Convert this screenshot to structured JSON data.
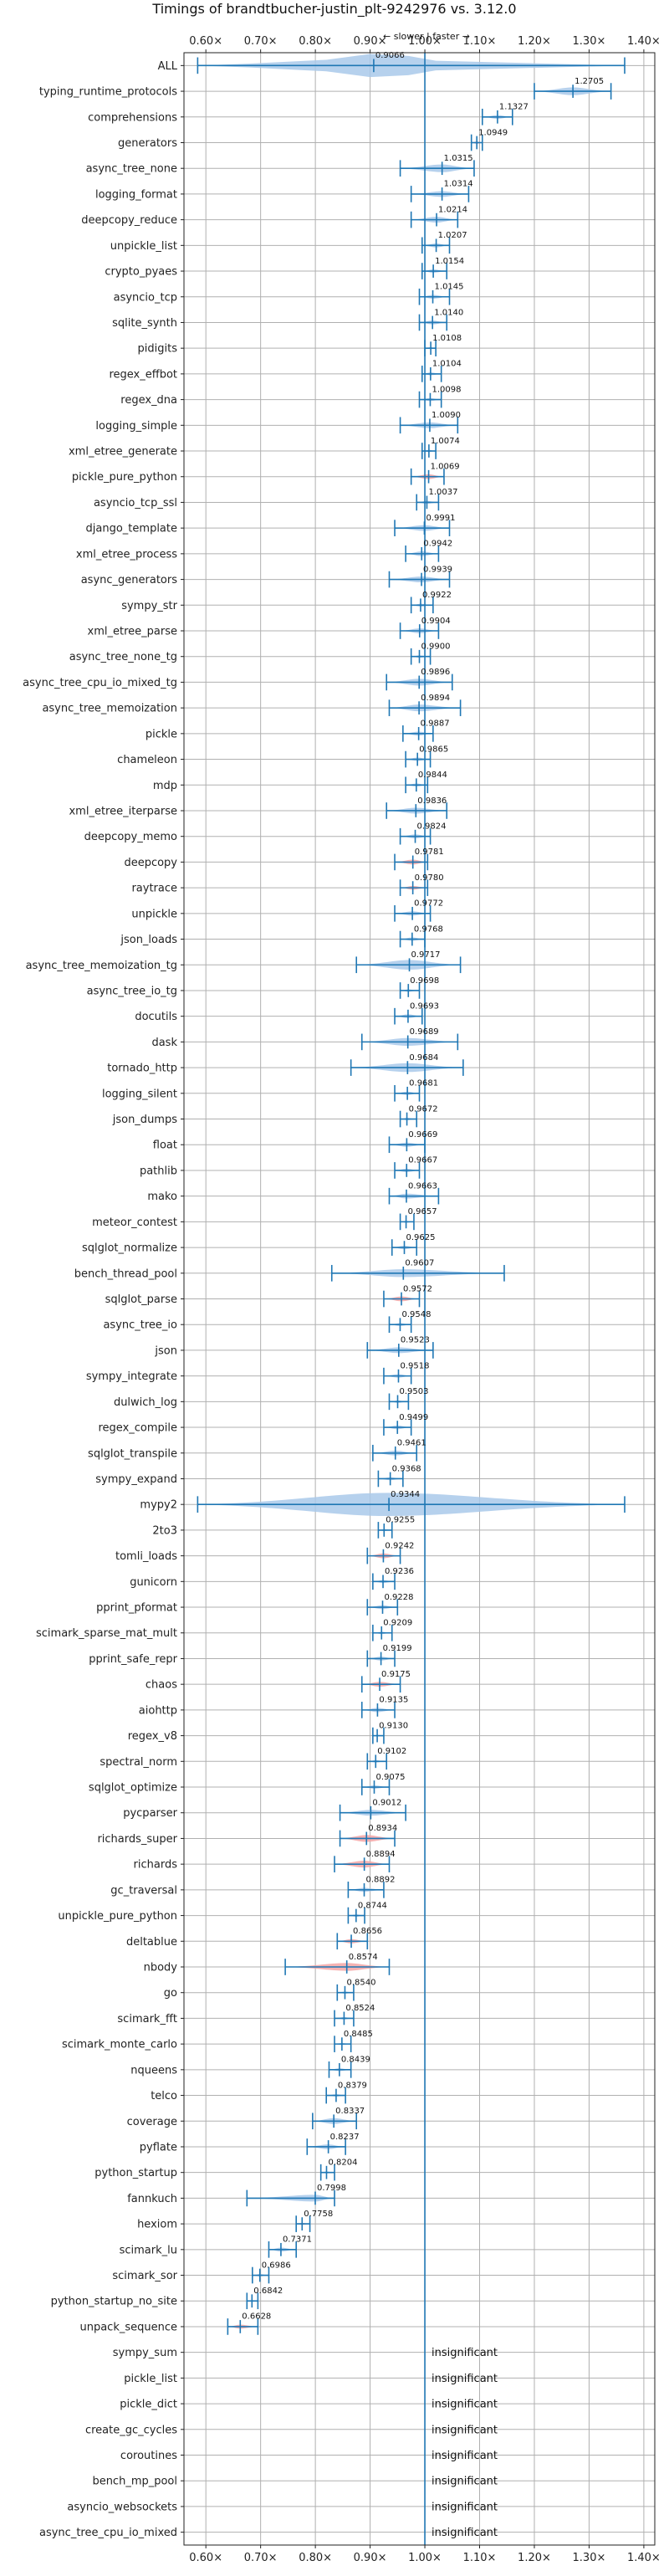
{
  "chart_data": {
    "type": "violin",
    "title": "Timings of brandtbucher-justin_plt-9242976 vs. 3.12.0",
    "subtitle": "← slower | faster →",
    "xlim": [
      0.56,
      1.42
    ],
    "xticks": [
      0.6,
      0.7,
      0.8,
      0.9,
      1.0,
      1.1,
      1.2,
      1.3,
      1.4
    ],
    "xtick_labels": [
      "0.60×",
      "0.70×",
      "0.80×",
      "0.90×",
      "1.00×",
      "1.10×",
      "1.20×",
      "1.30×",
      "1.40×"
    ],
    "grid": true,
    "reference_line": 1.0,
    "colors": {
      "normal": "#a9c9ea",
      "slower": "#f4a6a6",
      "errorbar": "#1f77b4"
    },
    "insignificant_label": "insignificant",
    "benchmarks": [
      {
        "name": "ALL",
        "label": "0.9066",
        "mean": 0.9066,
        "min": 0.585,
        "max": 1.365,
        "width": 0.05,
        "color": "normal",
        "violin": [
          [
            0.68,
            0.02
          ],
          [
            0.82,
            0.06
          ],
          [
            0.9,
            0.12
          ],
          [
            0.97,
            0.1
          ],
          [
            1.02,
            0.05
          ]
        ]
      },
      {
        "name": "typing_runtime_protocols",
        "label": "1.2705",
        "mean": 1.2705,
        "min": 1.2,
        "max": 1.34,
        "width": 0.04,
        "color": "normal"
      },
      {
        "name": "comprehensions",
        "label": "1.1327",
        "mean": 1.1327,
        "min": 1.105,
        "max": 1.16,
        "width": 0.02,
        "color": "normal"
      },
      {
        "name": "generators",
        "label": "1.0949",
        "mean": 1.0949,
        "min": 1.085,
        "max": 1.105,
        "width": 0.012,
        "color": "slower"
      },
      {
        "name": "async_tree_none",
        "label": "1.0315",
        "mean": 1.0315,
        "min": 0.955,
        "max": 1.09,
        "width": 0.04,
        "color": "normal"
      },
      {
        "name": "logging_format",
        "label": "1.0314",
        "mean": 1.0314,
        "min": 0.975,
        "max": 1.08,
        "width": 0.03,
        "color": "normal"
      },
      {
        "name": "deepcopy_reduce",
        "label": "1.0214",
        "mean": 1.0214,
        "min": 0.975,
        "max": 1.06,
        "width": 0.03,
        "color": "normal"
      },
      {
        "name": "unpickle_list",
        "label": "1.0207",
        "mean": 1.0207,
        "min": 0.995,
        "max": 1.045,
        "width": 0.02,
        "color": "normal"
      },
      {
        "name": "crypto_pyaes",
        "label": "1.0154",
        "mean": 1.0154,
        "min": 0.995,
        "max": 1.04,
        "width": 0.018,
        "color": "normal"
      },
      {
        "name": "asyncio_tcp",
        "label": "1.0145",
        "mean": 1.0145,
        "min": 0.99,
        "max": 1.045,
        "width": 0.02,
        "color": "normal"
      },
      {
        "name": "sqlite_synth",
        "label": "1.0140",
        "mean": 1.014,
        "min": 0.99,
        "max": 1.04,
        "width": 0.02,
        "color": "normal"
      },
      {
        "name": "pidigits",
        "label": "1.0108",
        "mean": 1.0108,
        "min": 1.0,
        "max": 1.02,
        "width": 0.01,
        "color": "normal"
      },
      {
        "name": "regex_effbot",
        "label": "1.0104",
        "mean": 1.0104,
        "min": 0.995,
        "max": 1.03,
        "width": 0.015,
        "color": "normal"
      },
      {
        "name": "regex_dna",
        "label": "1.0098",
        "mean": 1.0098,
        "min": 0.99,
        "max": 1.03,
        "width": 0.015,
        "color": "normal"
      },
      {
        "name": "logging_simple",
        "label": "1.0090",
        "mean": 1.009,
        "min": 0.955,
        "max": 1.06,
        "width": 0.03,
        "color": "normal"
      },
      {
        "name": "xml_etree_generate",
        "label": "1.0074",
        "mean": 1.0074,
        "min": 0.995,
        "max": 1.02,
        "width": 0.012,
        "color": "normal"
      },
      {
        "name": "pickle_pure_python",
        "label": "1.0069",
        "mean": 1.0069,
        "min": 0.975,
        "max": 1.035,
        "width": 0.025,
        "color": "slower"
      },
      {
        "name": "asyncio_tcp_ssl",
        "label": "1.0037",
        "mean": 1.0037,
        "min": 0.985,
        "max": 1.025,
        "width": 0.015,
        "color": "normal"
      },
      {
        "name": "django_template",
        "label": "0.9991",
        "mean": 0.9991,
        "min": 0.945,
        "max": 1.045,
        "width": 0.03,
        "color": "normal"
      },
      {
        "name": "xml_etree_process",
        "label": "0.9942",
        "mean": 0.9942,
        "min": 0.965,
        "max": 1.025,
        "width": 0.025,
        "color": "normal"
      },
      {
        "name": "async_generators",
        "label": "0.9939",
        "mean": 0.9939,
        "min": 0.935,
        "max": 1.045,
        "width": 0.03,
        "color": "normal"
      },
      {
        "name": "sympy_str",
        "label": "0.9922",
        "mean": 0.9922,
        "min": 0.975,
        "max": 1.015,
        "width": 0.015,
        "color": "normal"
      },
      {
        "name": "xml_etree_parse",
        "label": "0.9904",
        "mean": 0.9904,
        "min": 0.955,
        "max": 1.025,
        "width": 0.025,
        "color": "normal"
      },
      {
        "name": "async_tree_none_tg",
        "label": "0.9900",
        "mean": 0.99,
        "min": 0.975,
        "max": 1.01,
        "width": 0.012,
        "color": "normal"
      },
      {
        "name": "async_tree_cpu_io_mixed_tg",
        "label": "0.9896",
        "mean": 0.9896,
        "min": 0.93,
        "max": 1.05,
        "width": 0.035,
        "color": "normal"
      },
      {
        "name": "async_tree_memoization",
        "label": "0.9894",
        "mean": 0.9894,
        "min": 0.935,
        "max": 1.065,
        "width": 0.035,
        "color": "normal"
      },
      {
        "name": "pickle",
        "label": "0.9887",
        "mean": 0.9887,
        "min": 0.96,
        "max": 1.015,
        "width": 0.02,
        "color": "normal"
      },
      {
        "name": "chameleon",
        "label": "0.9865",
        "mean": 0.9865,
        "min": 0.965,
        "max": 1.01,
        "width": 0.018,
        "color": "normal"
      },
      {
        "name": "mdp",
        "label": "0.9844",
        "mean": 0.9844,
        "min": 0.965,
        "max": 1.005,
        "width": 0.015,
        "color": "normal"
      },
      {
        "name": "xml_etree_iterparse",
        "label": "0.9836",
        "mean": 0.9836,
        "min": 0.93,
        "max": 1.04,
        "width": 0.03,
        "color": "normal"
      },
      {
        "name": "deepcopy_memo",
        "label": "0.9824",
        "mean": 0.9824,
        "min": 0.955,
        "max": 1.01,
        "width": 0.02,
        "color": "normal"
      },
      {
        "name": "deepcopy",
        "label": "0.9781",
        "mean": 0.9781,
        "min": 0.945,
        "max": 1.005,
        "width": 0.025,
        "color": "slower"
      },
      {
        "name": "raytrace",
        "label": "0.9780",
        "mean": 0.978,
        "min": 0.955,
        "max": 1.005,
        "width": 0.02,
        "color": "slower"
      },
      {
        "name": "unpickle",
        "label": "0.9772",
        "mean": 0.9772,
        "min": 0.945,
        "max": 1.01,
        "width": 0.022,
        "color": "normal"
      },
      {
        "name": "json_loads",
        "label": "0.9768",
        "mean": 0.9768,
        "min": 0.955,
        "max": 1.0,
        "width": 0.018,
        "color": "normal"
      },
      {
        "name": "async_tree_memoization_tg",
        "label": "0.9717",
        "mean": 0.9717,
        "min": 0.875,
        "max": 1.065,
        "width": 0.05,
        "color": "normal"
      },
      {
        "name": "async_tree_io_tg",
        "label": "0.9698",
        "mean": 0.9698,
        "min": 0.955,
        "max": 0.99,
        "width": 0.012,
        "color": "normal"
      },
      {
        "name": "docutils",
        "label": "0.9693",
        "mean": 0.9693,
        "min": 0.945,
        "max": 0.995,
        "width": 0.02,
        "color": "normal"
      },
      {
        "name": "dask",
        "label": "0.9689",
        "mean": 0.9689,
        "min": 0.885,
        "max": 1.06,
        "width": 0.04,
        "color": "normal"
      },
      {
        "name": "tornado_http",
        "label": "0.9684",
        "mean": 0.9684,
        "min": 0.865,
        "max": 1.07,
        "width": 0.045,
        "color": "normal"
      },
      {
        "name": "logging_silent",
        "label": "0.9681",
        "mean": 0.9681,
        "min": 0.945,
        "max": 0.99,
        "width": 0.018,
        "color": "normal"
      },
      {
        "name": "json_dumps",
        "label": "0.9672",
        "mean": 0.9672,
        "min": 0.955,
        "max": 0.985,
        "width": 0.012,
        "color": "normal"
      },
      {
        "name": "float",
        "label": "0.9669",
        "mean": 0.9669,
        "min": 0.935,
        "max": 1.0,
        "width": 0.022,
        "color": "normal"
      },
      {
        "name": "pathlib",
        "label": "0.9667",
        "mean": 0.9667,
        "min": 0.945,
        "max": 0.99,
        "width": 0.018,
        "color": "normal"
      },
      {
        "name": "mako",
        "label": "0.9663",
        "mean": 0.9663,
        "min": 0.935,
        "max": 1.025,
        "width": 0.025,
        "color": "normal"
      },
      {
        "name": "meteor_contest",
        "label": "0.9657",
        "mean": 0.9657,
        "min": 0.955,
        "max": 0.98,
        "width": 0.01,
        "color": "normal"
      },
      {
        "name": "sqlglot_normalize",
        "label": "0.9625",
        "mean": 0.9625,
        "min": 0.94,
        "max": 0.985,
        "width": 0.018,
        "color": "normal"
      },
      {
        "name": "bench_thread_pool",
        "label": "0.9607",
        "mean": 0.9607,
        "min": 0.83,
        "max": 1.145,
        "width": 0.04,
        "color": "normal"
      },
      {
        "name": "sqlglot_parse",
        "label": "0.9572",
        "mean": 0.9572,
        "min": 0.925,
        "max": 0.99,
        "width": 0.025,
        "color": "slower"
      },
      {
        "name": "async_tree_io",
        "label": "0.9548",
        "mean": 0.9548,
        "min": 0.935,
        "max": 0.975,
        "width": 0.015,
        "color": "normal"
      },
      {
        "name": "json",
        "label": "0.9523",
        "mean": 0.9523,
        "min": 0.895,
        "max": 1.015,
        "width": 0.03,
        "color": "normal"
      },
      {
        "name": "sympy_integrate",
        "label": "0.9518",
        "mean": 0.9518,
        "min": 0.925,
        "max": 0.975,
        "width": 0.018,
        "color": "normal"
      },
      {
        "name": "dulwich_log",
        "label": "0.9503",
        "mean": 0.9503,
        "min": 0.935,
        "max": 0.97,
        "width": 0.012,
        "color": "normal"
      },
      {
        "name": "regex_compile",
        "label": "0.9499",
        "mean": 0.9499,
        "min": 0.925,
        "max": 0.975,
        "width": 0.02,
        "color": "normal"
      },
      {
        "name": "sqlglot_transpile",
        "label": "0.9461",
        "mean": 0.9461,
        "min": 0.905,
        "max": 0.985,
        "width": 0.025,
        "color": "normal"
      },
      {
        "name": "sympy_expand",
        "label": "0.9368",
        "mean": 0.9368,
        "min": 0.915,
        "max": 0.96,
        "width": 0.015,
        "color": "normal"
      },
      {
        "name": "mypy2",
        "label": "0.9344",
        "mean": 0.9344,
        "min": 0.585,
        "max": 1.365,
        "width": 0.12,
        "color": "normal"
      },
      {
        "name": "2to3",
        "label": "0.9255",
        "mean": 0.9255,
        "min": 0.915,
        "max": 0.94,
        "width": 0.01,
        "color": "normal"
      },
      {
        "name": "tomli_loads",
        "label": "0.9242",
        "mean": 0.9242,
        "min": 0.895,
        "max": 0.955,
        "width": 0.025,
        "color": "slower"
      },
      {
        "name": "gunicorn",
        "label": "0.9236",
        "mean": 0.9236,
        "min": 0.905,
        "max": 0.945,
        "width": 0.015,
        "color": "normal"
      },
      {
        "name": "pprint_pformat",
        "label": "0.9228",
        "mean": 0.9228,
        "min": 0.895,
        "max": 0.95,
        "width": 0.02,
        "color": "normal"
      },
      {
        "name": "scimark_sparse_mat_mult",
        "label": "0.9209",
        "mean": 0.9209,
        "min": 0.905,
        "max": 0.94,
        "width": 0.012,
        "color": "normal"
      },
      {
        "name": "pprint_safe_repr",
        "label": "0.9199",
        "mean": 0.9199,
        "min": 0.895,
        "max": 0.945,
        "width": 0.02,
        "color": "normal"
      },
      {
        "name": "chaos",
        "label": "0.9175",
        "mean": 0.9175,
        "min": 0.885,
        "max": 0.955,
        "width": 0.025,
        "color": "slower"
      },
      {
        "name": "aiohttp",
        "label": "0.9135",
        "mean": 0.9135,
        "min": 0.885,
        "max": 0.945,
        "width": 0.022,
        "color": "normal"
      },
      {
        "name": "regex_v8",
        "label": "0.9130",
        "mean": 0.913,
        "min": 0.905,
        "max": 0.925,
        "width": 0.008,
        "color": "normal"
      },
      {
        "name": "spectral_norm",
        "label": "0.9102",
        "mean": 0.9102,
        "min": 0.895,
        "max": 0.93,
        "width": 0.012,
        "color": "normal"
      },
      {
        "name": "sqlglot_optimize",
        "label": "0.9075",
        "mean": 0.9075,
        "min": 0.885,
        "max": 0.935,
        "width": 0.018,
        "color": "normal"
      },
      {
        "name": "pycparser",
        "label": "0.9012",
        "mean": 0.9012,
        "min": 0.845,
        "max": 0.965,
        "width": 0.03,
        "color": "normal"
      },
      {
        "name": "richards_super",
        "label": "0.8934",
        "mean": 0.8934,
        "min": 0.845,
        "max": 0.945,
        "width": 0.035,
        "color": "slower"
      },
      {
        "name": "richards",
        "label": "0.8894",
        "mean": 0.8894,
        "min": 0.835,
        "max": 0.935,
        "width": 0.035,
        "color": "slower"
      },
      {
        "name": "gc_traversal",
        "label": "0.8892",
        "mean": 0.8892,
        "min": 0.86,
        "max": 0.925,
        "width": 0.02,
        "color": "normal"
      },
      {
        "name": "unpickle_pure_python",
        "label": "0.8744",
        "mean": 0.8744,
        "min": 0.86,
        "max": 0.89,
        "width": 0.012,
        "color": "normal"
      },
      {
        "name": "deltablue",
        "label": "0.8656",
        "mean": 0.8656,
        "min": 0.84,
        "max": 0.895,
        "width": 0.022,
        "color": "slower"
      },
      {
        "name": "nbody",
        "label": "0.8574",
        "mean": 0.8574,
        "min": 0.745,
        "max": 0.935,
        "width": 0.04,
        "color": "slower"
      },
      {
        "name": "go",
        "label": "0.8540",
        "mean": 0.854,
        "min": 0.84,
        "max": 0.87,
        "width": 0.01,
        "color": "normal"
      },
      {
        "name": "scimark_fft",
        "label": "0.8524",
        "mean": 0.8524,
        "min": 0.835,
        "max": 0.87,
        "width": 0.012,
        "color": "normal"
      },
      {
        "name": "scimark_monte_carlo",
        "label": "0.8485",
        "mean": 0.8485,
        "min": 0.835,
        "max": 0.865,
        "width": 0.01,
        "color": "normal"
      },
      {
        "name": "nqueens",
        "label": "0.8439",
        "mean": 0.8439,
        "min": 0.825,
        "max": 0.865,
        "width": 0.015,
        "color": "normal"
      },
      {
        "name": "telco",
        "label": "0.8379",
        "mean": 0.8379,
        "min": 0.82,
        "max": 0.855,
        "width": 0.012,
        "color": "normal"
      },
      {
        "name": "coverage",
        "label": "0.8337",
        "mean": 0.8337,
        "min": 0.795,
        "max": 0.875,
        "width": 0.03,
        "color": "normal"
      },
      {
        "name": "pyflate",
        "label": "0.8237",
        "mean": 0.8237,
        "min": 0.785,
        "max": 0.855,
        "width": 0.025,
        "color": "normal"
      },
      {
        "name": "python_startup",
        "label": "0.8204",
        "mean": 0.8204,
        "min": 0.81,
        "max": 0.835,
        "width": 0.01,
        "color": "normal"
      },
      {
        "name": "fannkuch",
        "label": "0.7998",
        "mean": 0.7998,
        "min": 0.675,
        "max": 0.835,
        "width": 0.035,
        "color": "normal"
      },
      {
        "name": "hexiom",
        "label": "0.7758",
        "mean": 0.7758,
        "min": 0.765,
        "max": 0.79,
        "width": 0.01,
        "color": "slower"
      },
      {
        "name": "scimark_lu",
        "label": "0.7371",
        "mean": 0.7371,
        "min": 0.715,
        "max": 0.765,
        "width": 0.02,
        "color": "normal"
      },
      {
        "name": "scimark_sor",
        "label": "0.6986",
        "mean": 0.6986,
        "min": 0.685,
        "max": 0.715,
        "width": 0.012,
        "color": "normal"
      },
      {
        "name": "python_startup_no_site",
        "label": "0.6842",
        "mean": 0.6842,
        "min": 0.675,
        "max": 0.695,
        "width": 0.008,
        "color": "normal"
      },
      {
        "name": "unpack_sequence",
        "label": "0.6628",
        "mean": 0.6628,
        "min": 0.64,
        "max": 0.695,
        "width": 0.02,
        "color": "slower"
      },
      {
        "name": "sympy_sum",
        "insignificant": true
      },
      {
        "name": "pickle_list",
        "insignificant": true
      },
      {
        "name": "pickle_dict",
        "insignificant": true
      },
      {
        "name": "create_gc_cycles",
        "insignificant": true
      },
      {
        "name": "coroutines",
        "insignificant": true
      },
      {
        "name": "bench_mp_pool",
        "insignificant": true
      },
      {
        "name": "asyncio_websockets",
        "insignificant": true
      },
      {
        "name": "async_tree_cpu_io_mixed",
        "insignificant": true
      }
    ]
  }
}
